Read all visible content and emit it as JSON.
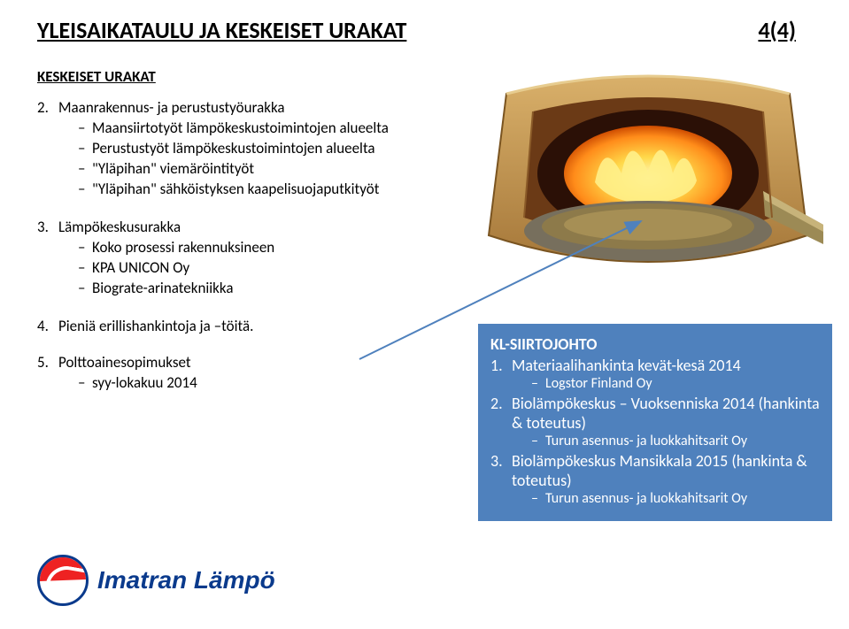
{
  "title_left": "YLEISAIKATAULU JA KESKEISET URAKAT",
  "title_right": "4(4)",
  "section_head": "KESKEISET URAKAT",
  "list": [
    {
      "num": "2.",
      "label": "Maanrakennus- ja perustustyöurakka",
      "subs": [
        "Maansiirtotyöt lämpökeskustoimintojen alueelta",
        "Perustustyöt lämpökeskustoimintojen alueelta",
        "\"Yläpihan\" viemäröintityöt",
        "\"Yläpihan\" sähköistyksen kaapelisuojaputkityöt"
      ]
    },
    {
      "num": "3.",
      "label": "Lämpökeskusurakka",
      "subs": [
        "Koko prosessi rakennuksineen",
        "KPA UNICON Oy",
        "Biograte-arinatekniikka"
      ]
    },
    {
      "num": "4.",
      "label": "Pieniä erillishankintoja ja –töitä.",
      "subs": []
    },
    {
      "num": "5.",
      "label": "Polttoainesopimukset",
      "subs": [
        "syy-lokakuu 2014"
      ]
    }
  ],
  "bluebox": {
    "title": "KL-SIIRTOJOHTO",
    "items": [
      {
        "n": "1.",
        "text": "Materiaalihankinta kevät-kesä 2014",
        "subs": [
          "Logstor Finland Oy"
        ]
      },
      {
        "n": "2.",
        "text": "Biolämpökeskus – Vuoksenniska 2014 (hankinta & toteutus)",
        "subs": [
          "Turun asennus- ja luokkahitsarit Oy"
        ]
      },
      {
        "n": "3.",
        "text": "Biolämpökeskus Mansikkala 2015 (hankinta & toteutus)",
        "subs": [
          "Turun asennus- ja luokkahitsarit Oy"
        ]
      }
    ]
  },
  "logo_text": "Imatran Lämpö",
  "furnace": {
    "outer_wall": "#c8984a",
    "inner_wall": "#8a5a28",
    "chamber_top": "#5a2f14",
    "chamber_dark": "#2b1006",
    "flame_outer": "#ffb300",
    "flame_inner": "#ffe85c",
    "grate_disc": "#6f6a5d",
    "fuel_bed": "#8d7a4a",
    "arrow_color": "#4f81bd"
  }
}
